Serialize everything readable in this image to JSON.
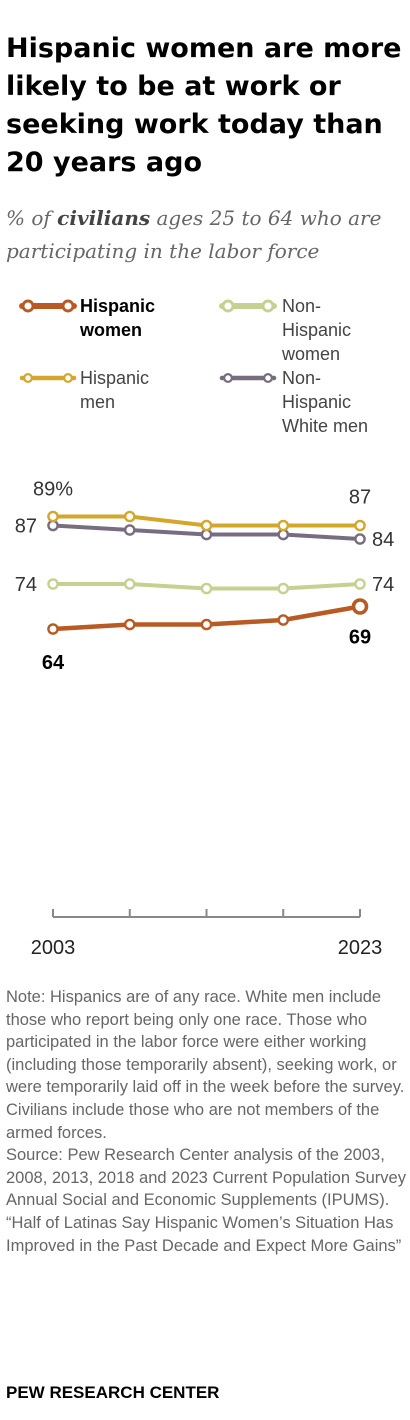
{
  "title": "Hispanic women are more likely to be at work or seeking work today than 20 years ago",
  "subtitle": {
    "prefix": "% of ",
    "emphasis": "civilians",
    "suffix": " ages 25 to 64 who are participating in the labor force"
  },
  "chart_data": {
    "type": "line",
    "x": [
      2003,
      2008,
      2013,
      2018,
      2023
    ],
    "xticklabels": [
      "2003",
      "",
      "",
      "",
      "2023"
    ],
    "ylim": [
      0,
      100
    ],
    "grid": false,
    "legend_position": "top",
    "series": [
      {
        "name": "Hispanic women",
        "color": "#b85a24",
        "values": [
          64,
          65,
          65,
          66,
          69
        ],
        "labels": [
          {
            "x": 2003,
            "text": "64"
          },
          {
            "x": 2023,
            "text": "69"
          }
        ]
      },
      {
        "name": "Non-Hispanic women",
        "color": "#c5d190",
        "values": [
          74,
          74,
          73,
          73,
          74
        ],
        "labels": [
          {
            "x": 2003,
            "text": "74"
          },
          {
            "x": 2023,
            "text": "74"
          }
        ]
      },
      {
        "name": "Hispanic men",
        "color": "#d4a72c",
        "values": [
          89,
          89,
          87,
          87,
          87
        ],
        "labels": [
          {
            "x": 2003,
            "text": "89%"
          },
          {
            "x": 2023,
            "text": "87"
          }
        ]
      },
      {
        "name": "Non-Hispanic White men",
        "color": "#786d80",
        "values": [
          87,
          86,
          85,
          85,
          84
        ],
        "labels": [
          {
            "x": 2003,
            "text": "87"
          },
          {
            "x": 2023,
            "text": "84"
          }
        ]
      }
    ]
  },
  "notes": [
    "Note: Hispanics are of any race. White men include those who report being only one race. Those who participated in the labor force were either working (including those temporarily absent), seeking work, or were temporarily laid off in the week before the survey. Civilians include those who are not members of the armed forces.",
    "Source: Pew Research Center analysis of the 2003, 2008, 2013, 2018 and 2023 Current Population Survey Annual Social and Economic Supplements (IPUMS).",
    "“Half of Latinas Say Hispanic Women’s Situation Has Improved in the Past Decade and Expect More Gains”"
  ],
  "footer": "PEW RESEARCH CENTER"
}
